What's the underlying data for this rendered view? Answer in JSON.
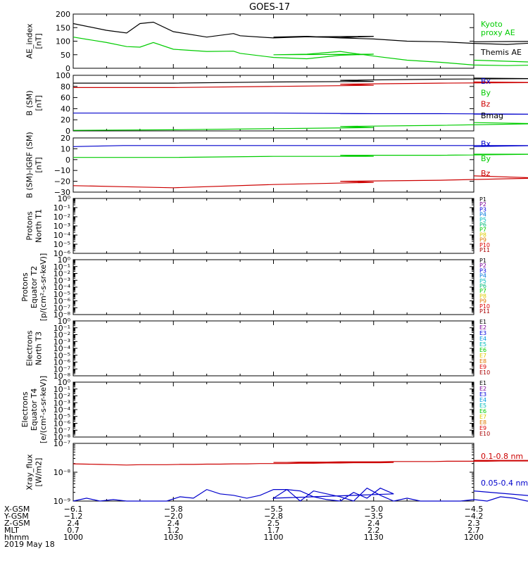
{
  "title": "GOES-17",
  "chart_data": [
    {
      "type": "line",
      "ylabel": "AE_index\n[nT]",
      "ylim": [
        0,
        200
      ],
      "yticks": [
        "0",
        "50",
        "100",
        "150",
        "200"
      ],
      "yticks_values": [
        0,
        50,
        100,
        150,
        200
      ],
      "x": [
        1000,
        1010,
        1016,
        1020,
        1024,
        1030,
        1040,
        1048,
        1050,
        1060,
        1070,
        1080,
        1090,
        1100,
        1110,
        1120,
        1130,
        1140,
        1150,
        1160,
        1170,
        1180,
        1190,
        1200
      ],
      "series": [
        {
          "name": "Themis AE",
          "color": "#000000",
          "values": [
            165,
            140,
            130,
            165,
            170,
            135,
            115,
            128,
            120,
            112,
            116,
            113,
            118,
            115,
            118,
            112,
            108,
            100,
            98,
            92,
            88,
            95,
            100,
            98
          ]
        },
        {
          "name": "Kyoto proxy AE",
          "color": "#00cc00",
          "values": [
            115,
            95,
            80,
            78,
            95,
            70,
            62,
            63,
            55,
            40,
            35,
            48,
            52,
            50,
            52,
            62,
            45,
            30,
            22,
            12,
            10,
            12,
            18,
            30
          ]
        }
      ],
      "legend": [
        {
          "label": "Kyoto\nproxy AE",
          "color": "#00cc00"
        },
        {
          "label": "Themis AE",
          "color": "#000000"
        }
      ]
    },
    {
      "type": "line",
      "ylabel": "B (SM)\n[nT]",
      "ylim": [
        0,
        100
      ],
      "yticks": [
        "0",
        "20",
        "40",
        "60",
        "80",
        "100"
      ],
      "yticks_values": [
        0,
        20,
        40,
        60,
        80,
        100
      ],
      "x": [
        1000,
        1030,
        1060,
        1090,
        1120,
        1150,
        1180,
        1200
      ],
      "series": [
        {
          "name": "Bx",
          "color": "#0000cc",
          "values": [
            32,
            32,
            32,
            31,
            31,
            31,
            30,
            30
          ]
        },
        {
          "name": "By",
          "color": "#00cc00",
          "values": [
            1,
            2,
            4,
            6,
            8,
            10,
            13,
            15
          ]
        },
        {
          "name": "Bz",
          "color": "#cc0000",
          "values": [
            78,
            78,
            80,
            82,
            84,
            86,
            87,
            88
          ]
        },
        {
          "name": "Bmag",
          "color": "#000000",
          "values": [
            86,
            86,
            88,
            89,
            91,
            93,
            94,
            95
          ]
        }
      ],
      "legend": [
        {
          "label": "Bx",
          "color": "#0000cc"
        },
        {
          "label": "By",
          "color": "#00cc00"
        },
        {
          "label": "Bz",
          "color": "#cc0000"
        },
        {
          "label": "Bmag",
          "color": "#000000"
        }
      ]
    },
    {
      "type": "line",
      "ylabel": "B (SM)-IGRF (SM)\n[nT]",
      "ylim": [
        -30,
        20
      ],
      "yticks": [
        "−30",
        "−20",
        "−10",
        "0",
        "10",
        "20"
      ],
      "yticks_values": [
        -30,
        -20,
        -10,
        0,
        10,
        20
      ],
      "x": [
        1000,
        1015,
        1030,
        1060,
        1090,
        1120,
        1150,
        1180,
        1200
      ],
      "series": [
        {
          "name": "Bx",
          "color": "#0000cc",
          "values": [
            12,
            13,
            13,
            13,
            13,
            13,
            13,
            13,
            12
          ]
        },
        {
          "name": "By",
          "color": "#00cc00",
          "values": [
            2,
            2,
            2,
            3,
            3,
            4,
            4,
            5,
            5
          ]
        },
        {
          "name": "Bz",
          "color": "#cc0000",
          "values": [
            -24,
            -25,
            -26,
            -23,
            -21,
            -20,
            -19,
            -17,
            -15
          ]
        }
      ],
      "legend": [
        {
          "label": "Bx",
          "color": "#0000cc"
        },
        {
          "label": "By",
          "color": "#00cc00"
        },
        {
          "label": "Bz",
          "color": "#cc0000"
        }
      ]
    },
    {
      "type": "line",
      "ylabel": "Protons\nNorth T1",
      "yscale": "log",
      "ylim_exp": [
        -6,
        0
      ],
      "yticks": [
        "10⁰",
        "10⁻¹",
        "10⁻²",
        "10⁻³",
        "10⁻⁴",
        "10⁻⁵",
        "10⁻⁶"
      ],
      "series": [],
      "legend": [
        {
          "label": "P1",
          "color": "#000000"
        },
        {
          "label": "P2",
          "color": "#7a0099"
        },
        {
          "label": "P3",
          "color": "#0000dd"
        },
        {
          "label": "P4",
          "color": "#0077dd"
        },
        {
          "label": "P5",
          "color": "#00bbbb"
        },
        {
          "label": "P6",
          "color": "#00bb77"
        },
        {
          "label": "P7",
          "color": "#00cc00"
        },
        {
          "label": "P8",
          "color": "#ddcc00"
        },
        {
          "label": "P9",
          "color": "#dd7700"
        },
        {
          "label": "P10",
          "color": "#dd0000"
        },
        {
          "label": "P11",
          "color": "#aa0000"
        }
      ]
    },
    {
      "type": "line",
      "ylabel": "Protons\nEquator T2\n[p/(cm²-s-sr-keV)]",
      "yscale": "log",
      "ylim_exp": [
        -8,
        0
      ],
      "yticks": [
        "10⁰",
        "10⁻¹",
        "10⁻²",
        "10⁻³",
        "10⁻⁴",
        "10⁻⁵",
        "10⁻⁶",
        "10⁻⁷",
        "10⁻⁸"
      ],
      "series": [],
      "legend": [
        {
          "label": "P1",
          "color": "#000000"
        },
        {
          "label": "P2",
          "color": "#7a0099"
        },
        {
          "label": "P3",
          "color": "#0000dd"
        },
        {
          "label": "P4",
          "color": "#0077dd"
        },
        {
          "label": "P5",
          "color": "#00bbbb"
        },
        {
          "label": "P6",
          "color": "#00bb77"
        },
        {
          "label": "P7",
          "color": "#00cc00"
        },
        {
          "label": "P8",
          "color": "#ddcc00"
        },
        {
          "label": "P9",
          "color": "#dd7700"
        },
        {
          "label": "P10",
          "color": "#dd0000"
        },
        {
          "label": "P11",
          "color": "#aa0000"
        }
      ]
    },
    {
      "type": "line",
      "ylabel": "Electrons\nNorth T3",
      "yscale": "log",
      "ylim_exp": [
        -8,
        0
      ],
      "yticks": [
        "10⁰",
        "10⁻¹",
        "10⁻²",
        "10⁻³",
        "10⁻⁴",
        "10⁻⁵",
        "10⁻⁶",
        "10⁻⁷",
        "10⁻⁸"
      ],
      "series": [],
      "legend": [
        {
          "label": "E1",
          "color": "#000000"
        },
        {
          "label": "E2",
          "color": "#7a0099"
        },
        {
          "label": "E3",
          "color": "#0000dd"
        },
        {
          "label": "E4",
          "color": "#0099dd"
        },
        {
          "label": "E5",
          "color": "#00bbbb"
        },
        {
          "label": "E6",
          "color": "#00cc00"
        },
        {
          "label": "E7",
          "color": "#ddcc00"
        },
        {
          "label": "E8",
          "color": "#dd7700"
        },
        {
          "label": "E9",
          "color": "#dd0000"
        },
        {
          "label": "E10",
          "color": "#aa0000"
        }
      ]
    },
    {
      "type": "line",
      "ylabel": "Electrons\nEquator T4\n[e/(cm²-s-sr-keV)]",
      "yscale": "log",
      "ylim_exp": [
        -8,
        0
      ],
      "yticks": [
        "10⁰",
        "10⁻¹",
        "10⁻²",
        "10⁻³",
        "10⁻⁴",
        "10⁻⁵",
        "10⁻⁶",
        "10⁻⁷",
        "10⁻⁸"
      ],
      "series": [],
      "legend": [
        {
          "label": "E1",
          "color": "#000000"
        },
        {
          "label": "E2",
          "color": "#7a0099"
        },
        {
          "label": "E3",
          "color": "#0000dd"
        },
        {
          "label": "E4",
          "color": "#0099dd"
        },
        {
          "label": "E5",
          "color": "#00bbbb"
        },
        {
          "label": "E6",
          "color": "#00cc00"
        },
        {
          "label": "E7",
          "color": "#ddcc00"
        },
        {
          "label": "E8",
          "color": "#dd7700"
        },
        {
          "label": "E9",
          "color": "#dd0000"
        },
        {
          "label": "E10",
          "color": "#aa0000"
        }
      ]
    },
    {
      "type": "line",
      "ylabel": "Xray_flux\n[W/m2]",
      "yscale": "log",
      "ylim_exp": [
        -9,
        -7
      ],
      "yticks": [
        "10⁻⁷",
        "10⁻⁸",
        "10⁻⁹"
      ],
      "x": [
        1000,
        1004,
        1008,
        1012,
        1016,
        1020,
        1028,
        1032,
        1036,
        1040,
        1044,
        1048,
        1052,
        1056,
        1060,
        1064,
        1068,
        1072,
        1076,
        1080,
        1084,
        1088,
        1092,
        1096,
        1100,
        1104,
        1108,
        1112,
        1116,
        1120,
        1124,
        1128,
        1132,
        1136,
        1140,
        1144,
        1148,
        1152,
        1156,
        1160,
        1164,
        1168,
        1172,
        1176,
        1180,
        1184,
        1188,
        1192,
        1196,
        1200
      ],
      "series": [
        {
          "name": "0.1-0.8 nm",
          "color": "#cc0000",
          "values_exp": [
            -7.71,
            -7.72,
            -7.73,
            -7.74,
            -7.75,
            -7.74,
            -7.74,
            -7.73,
            -7.73,
            -7.72,
            -7.72,
            -7.71,
            -7.71,
            -7.7,
            -7.7,
            -7.7,
            -7.69,
            -7.69,
            -7.68,
            -7.68,
            -7.67,
            -7.67,
            -7.67,
            -7.66,
            -7.66,
            -7.66,
            -7.65,
            -7.65,
            -7.65,
            -7.64,
            -7.64,
            -7.64,
            -7.64,
            -7.63,
            -7.63,
            -7.63,
            -7.63,
            -7.62,
            -7.62,
            -7.62,
            -7.62,
            -7.61,
            -7.61,
            -7.61,
            -7.61,
            -7.6,
            -7.6,
            -7.6,
            -7.59,
            -7.59
          ]
        },
        {
          "name": "0.05-0.4 nm",
          "color": "#0000cc",
          "values_exp": [
            -9.0,
            -8.9,
            -9.0,
            -8.95,
            -9.0,
            -9.0,
            -9.0,
            -8.85,
            -8.9,
            -8.6,
            -8.75,
            -8.8,
            -8.9,
            -8.8,
            -8.6,
            -8.6,
            -8.65,
            -8.85,
            -8.95,
            -9.0,
            -8.7,
            -8.9,
            -8.55,
            -8.75,
            -8.9,
            -8.6,
            -9.0,
            -8.65,
            -8.75,
            -8.85,
            -9.0,
            -8.55,
            -8.8,
            -9.0,
            -8.9,
            -9.0,
            -9.0,
            -9.0,
            -9.0,
            -8.95,
            -9.0,
            -8.85,
            -8.9,
            -9.0,
            -8.95,
            -9.0,
            -9.0,
            -8.95,
            -9.0,
            -8.65
          ]
        }
      ],
      "legend": [
        {
          "label": "0.1-0.8 nm",
          "color": "#cc0000"
        },
        {
          "label": "0.05-0.4 nm",
          "color": "#0000cc"
        }
      ]
    }
  ],
  "xaxis": {
    "tick_values": [
      1000,
      1030,
      1100,
      1130,
      1200
    ],
    "row_labels": [
      "X-GSM",
      "Y-GSM",
      "Z-GSM",
      "MLT",
      "hhmm",
      "2019 May 18"
    ],
    "rows": [
      [
        "−6.1",
        "−5.8",
        "−5.5",
        "−5.0",
        "−4.5"
      ],
      [
        "−1.2",
        "−2.0",
        "−2.8",
        "−3.5",
        "−4.2"
      ],
      [
        "2.4",
        "2.4",
        "2.5",
        "2.4",
        "2.3"
      ],
      [
        "0.7",
        "1.2",
        "1.7",
        "2.2",
        "2.7"
      ],
      [
        "1000",
        "1030",
        "1100",
        "1130",
        "1200"
      ]
    ]
  }
}
